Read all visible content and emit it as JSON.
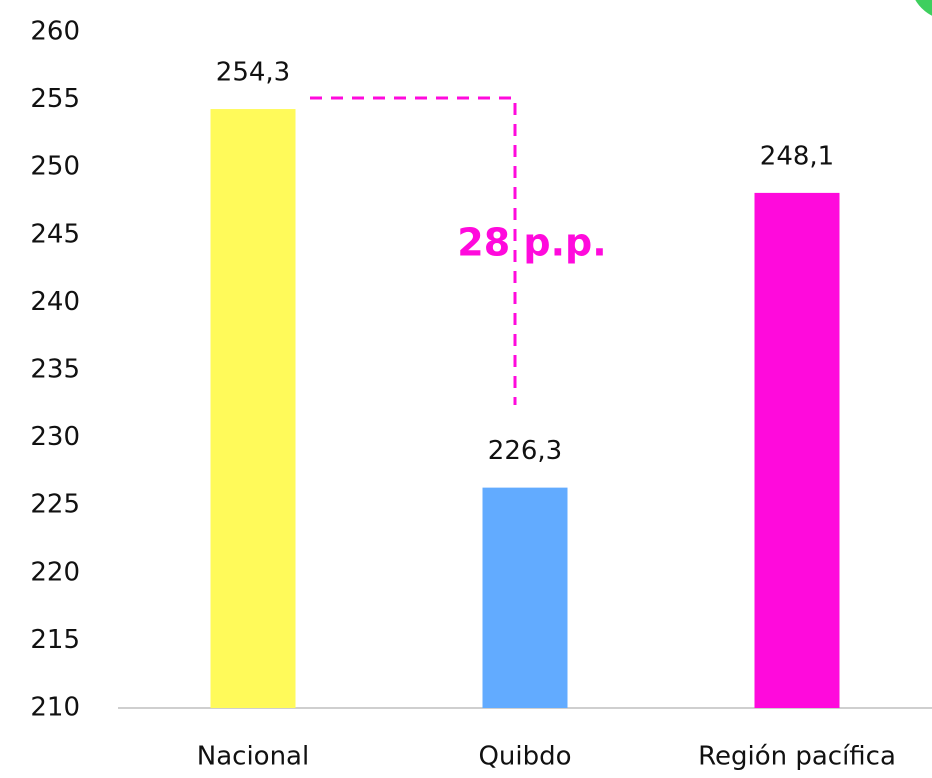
{
  "chart_data": {
    "type": "bar",
    "categories": [
      "Nacional",
      "Quibdo",
      "Región pacífica"
    ],
    "values": [
      254.3,
      226.3,
      248.1
    ],
    "value_labels": [
      "254,3",
      "226,3",
      "248,1"
    ],
    "colors": [
      "#fffa5a",
      "#62abff",
      "#ff0adc"
    ],
    "ylim": [
      210,
      260
    ],
    "yticks": [
      210,
      215,
      220,
      225,
      230,
      235,
      240,
      245,
      250,
      255,
      260
    ],
    "annotation": "28 p.p.",
    "annotation_color": "#ff0adc",
    "grid": false
  }
}
